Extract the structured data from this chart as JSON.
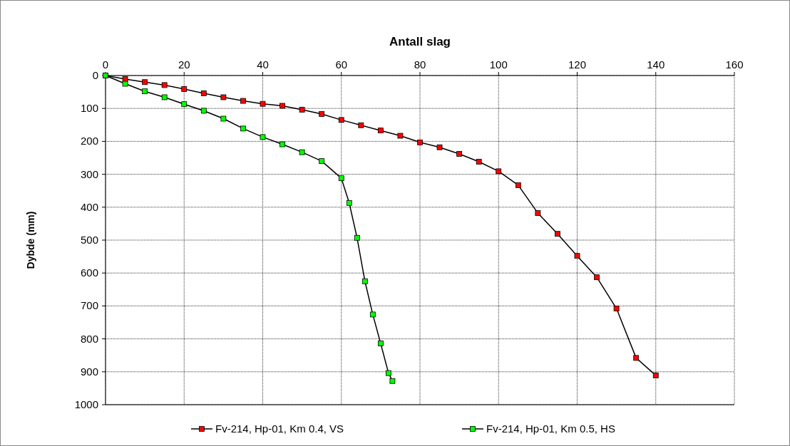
{
  "chart_data": {
    "type": "line",
    "xlabel": "Antall slag",
    "ylabel": "Dybde (mm)",
    "xlim": [
      0,
      160
    ],
    "xticks": [
      0,
      20,
      40,
      60,
      80,
      100,
      120,
      140,
      160
    ],
    "ylim": [
      1000,
      0
    ],
    "yticks": [
      0,
      100,
      200,
      300,
      400,
      500,
      600,
      700,
      800,
      900,
      1000
    ],
    "grid": true,
    "legend": "bottom",
    "marker": "square",
    "line_style": "solid",
    "series": [
      {
        "name": "Fv-214, Hp-01, Km 0.4, VS",
        "color": "#ff0000",
        "x": [
          0,
          5,
          10,
          15,
          20,
          25,
          30,
          35,
          40,
          45,
          50,
          55,
          60,
          65,
          70,
          75,
          80,
          85,
          90,
          95,
          100,
          105,
          110,
          115,
          120,
          125,
          130,
          135,
          140
        ],
        "values": [
          0,
          11,
          20,
          29,
          41,
          54,
          66,
          77,
          86,
          92,
          104,
          117,
          135,
          151,
          167,
          183,
          203,
          218,
          238,
          262,
          291,
          333,
          418,
          481,
          548,
          613,
          708,
          858,
          911
        ]
      },
      {
        "name": "Fv-214, Hp-01, Km 0.5, HS",
        "color": "#00ff00",
        "x": [
          0,
          5,
          10,
          15,
          20,
          25,
          30,
          35,
          40,
          45,
          50,
          55,
          60,
          62,
          64,
          66,
          68,
          70,
          72,
          73
        ],
        "values": [
          0,
          25,
          48,
          66,
          87,
          107,
          131,
          161,
          187,
          209,
          233,
          260,
          312,
          387,
          493,
          625,
          726,
          814,
          904,
          928
        ]
      }
    ]
  }
}
